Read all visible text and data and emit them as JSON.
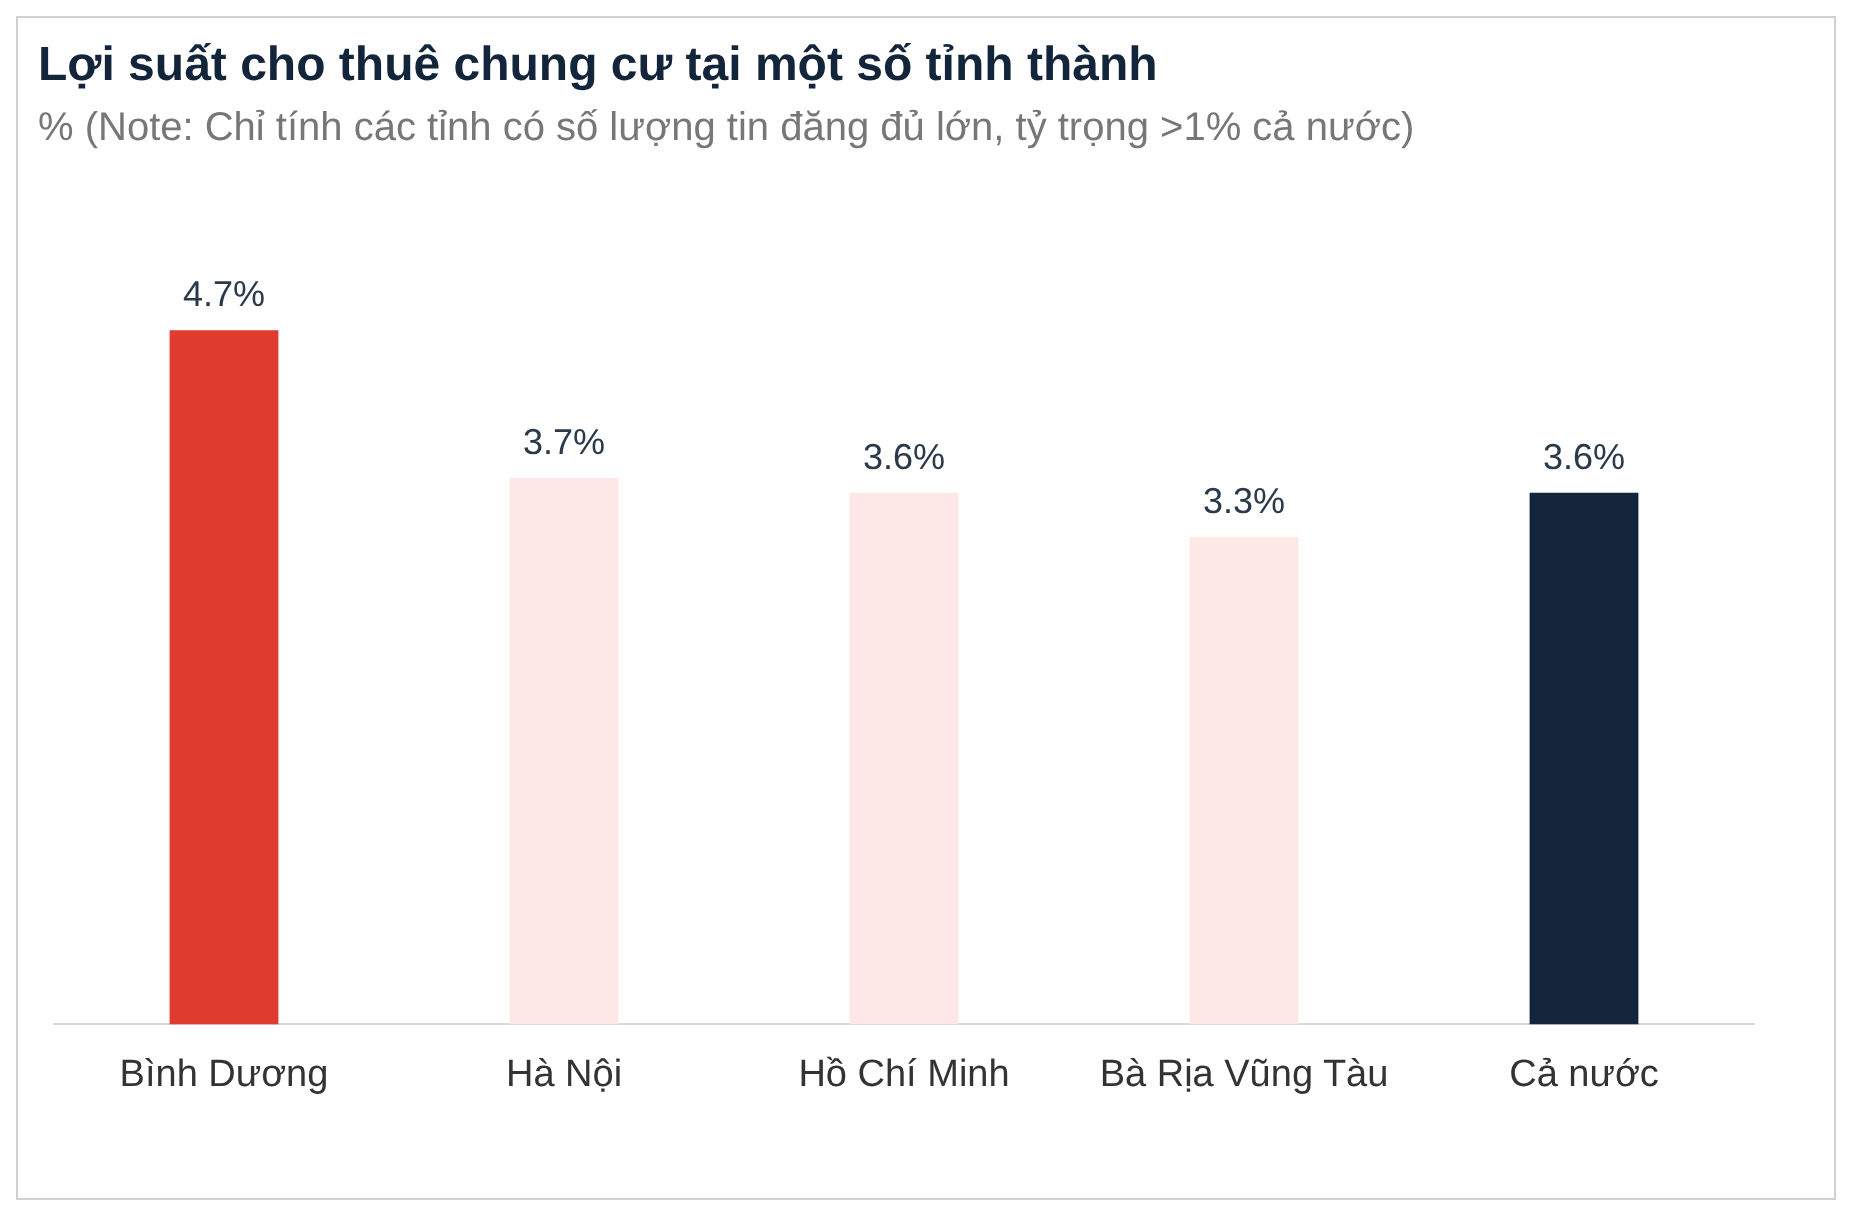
{
  "chart_data": {
    "type": "bar",
    "title": "Lợi suất cho thuê chung cư tại một số tỉnh thành",
    "subtitle": "% (Note: Chỉ tính các tỉnh có số lượng tin đăng đủ lớn, tỷ trọng >1% cả nước)",
    "categories": [
      "Bình Dương",
      "Hà Nội",
      "Hồ Chí Minh",
      "Bà Rịa Vũng Tàu",
      "Cả nước"
    ],
    "values": [
      4.7,
      3.7,
      3.6,
      3.3,
      3.6
    ],
    "value_labels": [
      "4.7%",
      "3.7%",
      "3.6%",
      "3.3%",
      "3.6%"
    ],
    "colors": [
      "#e03c2d",
      "#fde8e6",
      "#fde8e6",
      "#fde8e6",
      "#13253a"
    ],
    "grid": false,
    "legend": false
  }
}
